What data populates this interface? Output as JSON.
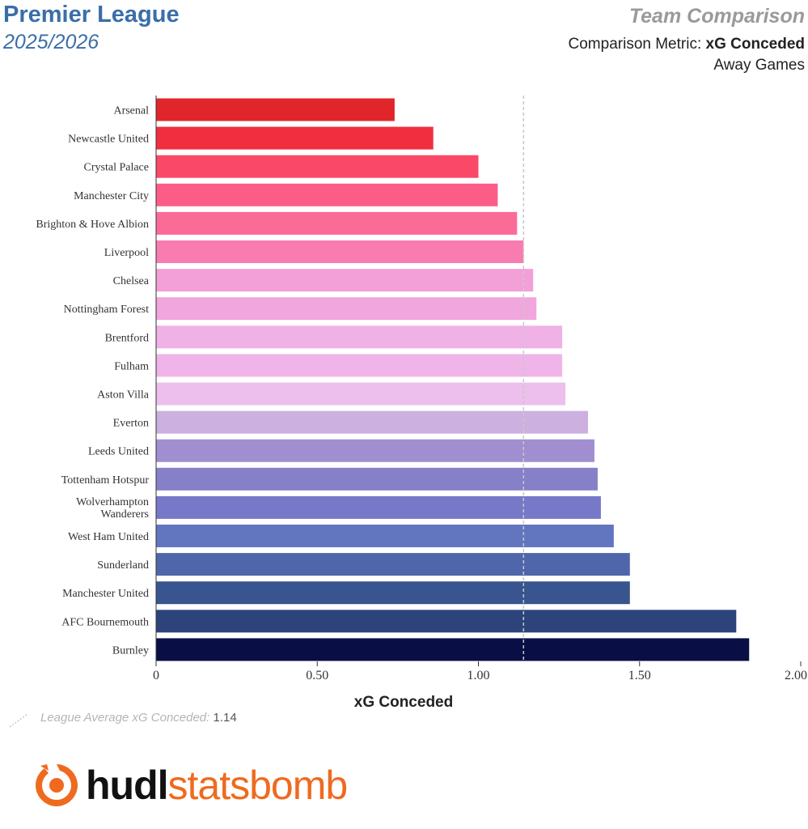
{
  "header": {
    "league": "Premier League",
    "season": "2025/2026",
    "title": "Team Comparison",
    "metric_prefix": "Comparison Metric: ",
    "metric_name": "xG Conceded",
    "split": "Away Games"
  },
  "footer": {
    "avg_label": "League Average xG Conceded: ",
    "avg_value": "1.14",
    "brand_bold": "hudl",
    "brand_light": "statsbomb"
  },
  "colors": {
    "title_blue": "#3a6ea8",
    "brand_orange": "#ef6a1f"
  },
  "chart_data": {
    "type": "bar",
    "orientation": "horizontal",
    "xlabel": "xG Conceded",
    "xlim": [
      0,
      2.0
    ],
    "xticks": [
      "0",
      "0.50",
      "1.00",
      "1.50",
      "2.00"
    ],
    "xtick_values": [
      0,
      0.5,
      1.0,
      1.5,
      2.0
    ],
    "reference_line": {
      "value": 1.14
    },
    "categories": [
      "Arsenal",
      "Newcastle United",
      "Crystal Palace",
      "Manchester City",
      "Brighton & Hove Albion",
      "Liverpool",
      "Chelsea",
      "Nottingham Forest",
      "Brentford",
      "Fulham",
      "Aston Villa",
      "Everton",
      "Leeds United",
      "Tottenham Hotspur",
      "Wolverhampton Wanderers",
      "West Ham United",
      "Sunderland",
      "Manchester United",
      "AFC Bournemouth",
      "Burnley"
    ],
    "values": [
      0.74,
      0.86,
      1.0,
      1.06,
      1.12,
      1.14,
      1.17,
      1.18,
      1.26,
      1.26,
      1.27,
      1.34,
      1.36,
      1.37,
      1.38,
      1.42,
      1.47,
      1.47,
      1.8,
      1.84
    ],
    "bar_colors": [
      "#e0262b",
      "#f02e40",
      "#fa4868",
      "#fc5d88",
      "#fb6b98",
      "#f97cb0",
      "#f4a0d8",
      "#f1a6dd",
      "#efb1e6",
      "#efb5e8",
      "#ecbfec",
      "#ccb0e0",
      "#a08ed0",
      "#8680c8",
      "#7878c8",
      "#6276c0",
      "#4f66ab",
      "#38558f",
      "#2c437c",
      "#090f44"
    ]
  }
}
